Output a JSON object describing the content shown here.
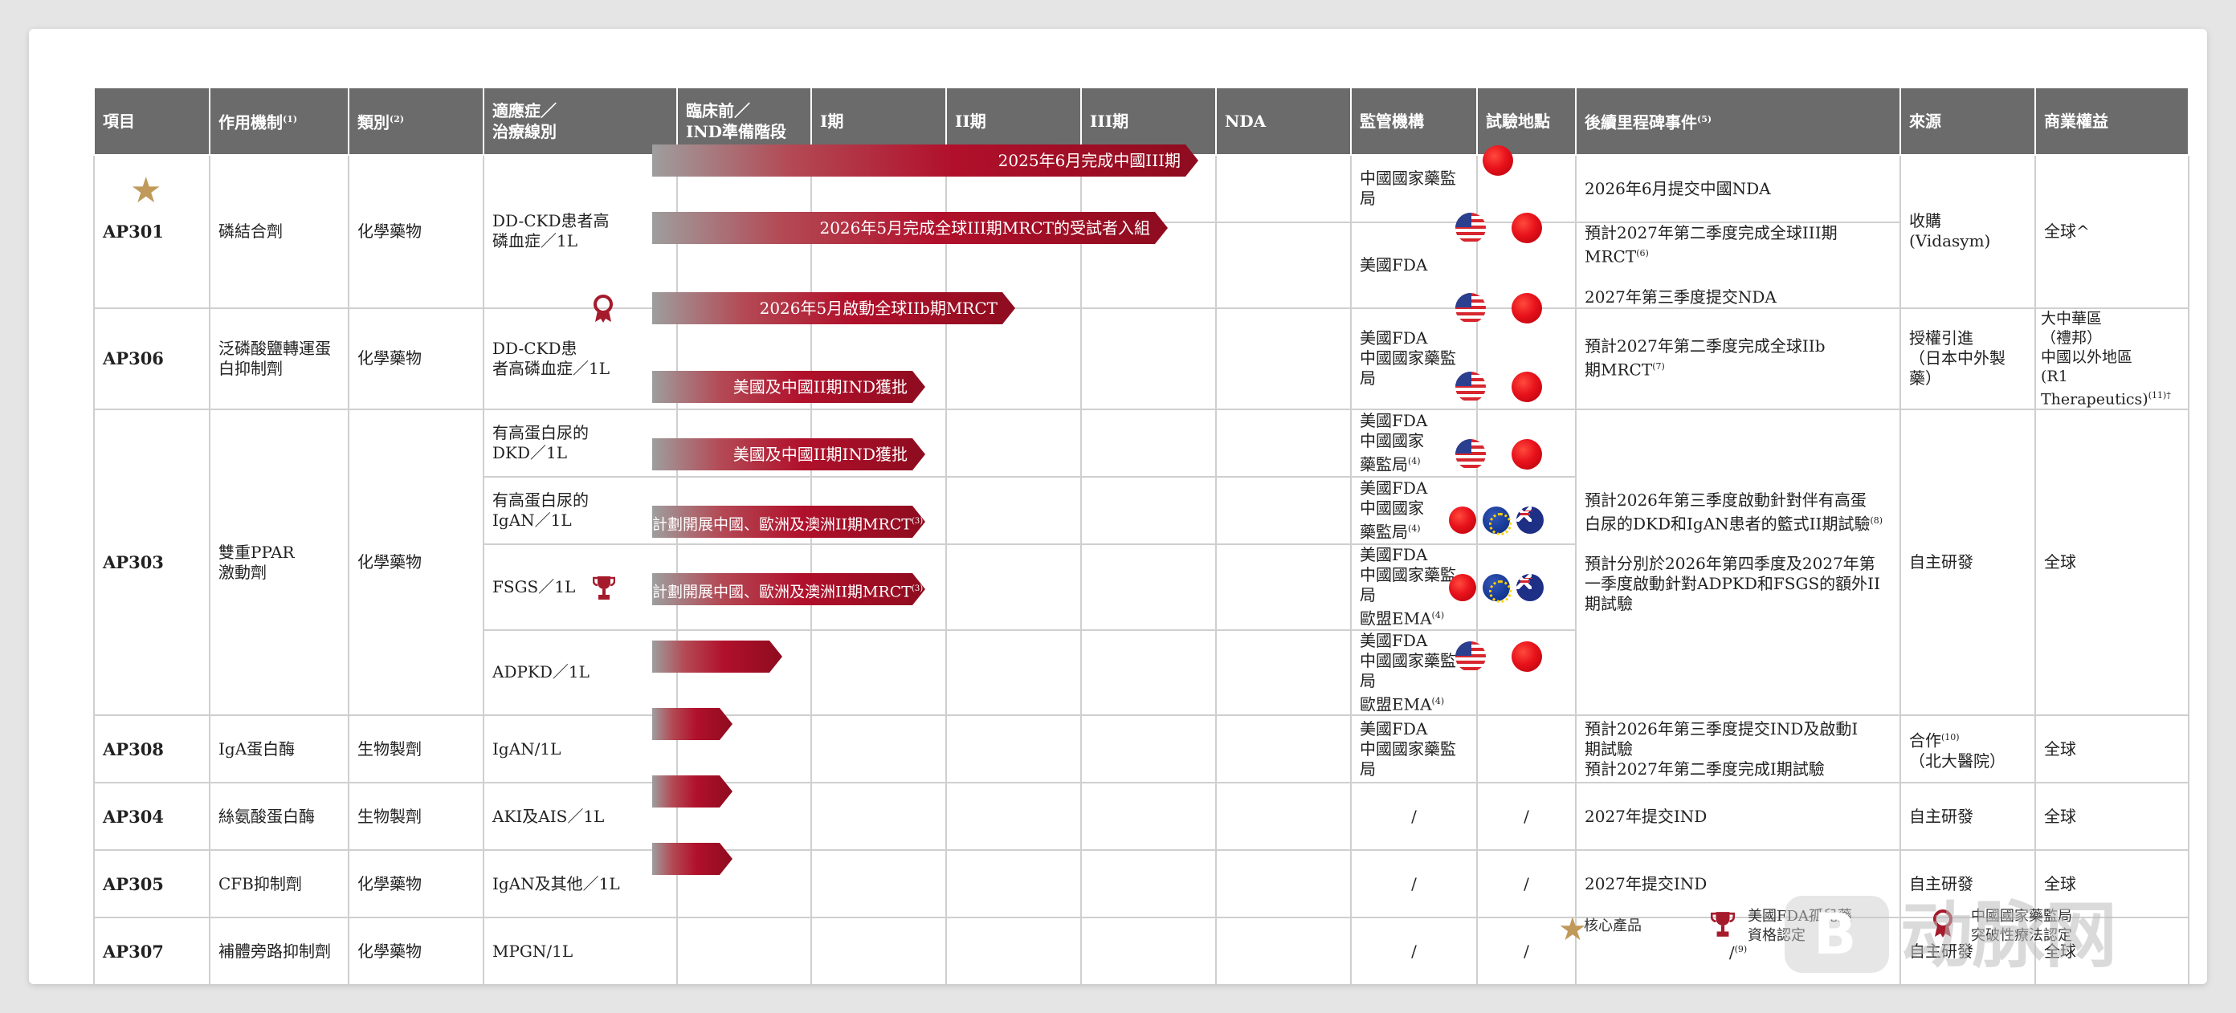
{
  "headers": {
    "project": "項目",
    "mechanism": "作用機制",
    "mechanism_note": "(1)",
    "category": "類別",
    "category_note": "(2)",
    "indication_l1": "適應症／",
    "indication_l2": "治療線別",
    "preclinical_l1": "臨床前／",
    "preclinical_l2": "IND準備階段",
    "phase1": "I期",
    "phase2": "II期",
    "phase3": "III期",
    "nda": "NDA",
    "regulator": "監管機構",
    "site": "試驗地點",
    "milestone": "後續里程碑事件",
    "milestone_note": "(5)",
    "source": "來源",
    "rights": "商業權益"
  },
  "rows": {
    "ap301": {
      "code": "AP301",
      "mechanism": "磷結合劑",
      "category": "化學藥物",
      "indication_l1": "DD-CKD患者高",
      "indication_l2": "磷血症／1L",
      "bar1": "2025年6月完成中國III期",
      "bar2": "2026年5月完成全球III期MRCT的受試者入組",
      "regulator1": "中國國家藥監局",
      "regulator2": "美國FDA",
      "milestone1": "2026年6月提交中國NDA",
      "milestone2a": "預計2027年第二季度完成全球III期MRCT",
      "milestone2a_note": "(6)",
      "milestone2b": "2027年第三季度提交NDA",
      "source_l1": "收購",
      "source_l2": "(Vidasym)",
      "rights": "全球^"
    },
    "ap306": {
      "code": "AP306",
      "mechanism_l1": "泛磷酸鹽轉運蛋",
      "mechanism_l2": "白抑制劑",
      "category": "化學藥物",
      "indication_l1": "DD-CKD患",
      "indication_l2": "者高磷血症／1L",
      "bar": "2026年5月啟動全球IIb期MRCT",
      "regulator_l1": "美國FDA",
      "regulator_l2": "中國國家藥監局",
      "milestone_l1": "預計2027年第二季度完成全球IIb",
      "milestone_l2": "期MRCT",
      "milestone_note": "(7)",
      "source_l1": "授權引進",
      "source_l2": "（日本中外製藥）",
      "rights_l1": "大中華區",
      "rights_l2": "（禮邦）",
      "rights_l3": "中國以外地區",
      "rights_l4": "(R1 Therapeutics)",
      "rights_note": "(11)†"
    },
    "ap303": {
      "code": "AP303",
      "mechanism_l1": "雙重PPAR",
      "mechanism_l2": "激動劑",
      "category": "化學藥物",
      "ind1_l1": "有高蛋白尿的",
      "ind1_l2": "DKD／1L",
      "ind2_l1": "有高蛋白尿的",
      "ind2_l2": "IgAN／1L",
      "ind3": "FSGS／1L",
      "ind4": "ADPKD／1L",
      "bar1": "美國及中國II期IND獲批",
      "bar2": "美國及中國II期IND獲批",
      "bar3": "計劃開展中國、歐洲及澳洲II期MRCT",
      "bar3_note": "(3)",
      "bar4": "計劃開展中國、歐洲及澳洲II期MRCT",
      "bar4_note": "(3)",
      "reg1_l1": "美國FDA",
      "reg1_l2": "中國國家",
      "reg1_l3": "藥監局",
      "reg1_note": "(4)",
      "reg2_l1": "美國FDA",
      "reg2_l2": "中國國家",
      "reg2_l3": "藥監局",
      "reg2_note": "(4)",
      "reg3_l1": "美國FDA",
      "reg3_l2": "中國國家藥監局",
      "reg3_l3": "歐盟EMA",
      "reg3_note": "(4)",
      "reg4_l1": "美國FDA",
      "reg4_l2": "中國國家藥監局",
      "reg4_l3": "歐盟EMA",
      "reg4_note": "(4)",
      "ms1_l1": "預計2026年第三季度啟動針對伴有高蛋",
      "ms1_l2": "白尿的DKD和IgAN患者的籃式II期試驗",
      "ms1_note": "(8)",
      "ms2_l1": "預計分別於2026年第四季度及2027年第",
      "ms2_l2": "一季度啟動針對ADPKD和FSGS的額外II",
      "ms2_l3": "期試驗",
      "source": "自主研發",
      "rights": "全球"
    },
    "ap308": {
      "code": "AP308",
      "mechanism": "IgA蛋白酶",
      "category": "生物製劑",
      "indication": "IgAN/1L",
      "regulator_l1": "美國FDA",
      "regulator_l2": "中國國家藥監局",
      "milestone_l1": "預計2026年第三季度提交IND及啟動I",
      "milestone_l2": "期試驗",
      "milestone_l3": "預計2027年第二季度完成I期試驗",
      "source_l1": "合作",
      "source_note": "(10)",
      "source_l2": "（北大醫院）",
      "rights": "全球"
    },
    "ap304": {
      "code": "AP304",
      "mechanism": "絲氨酸蛋白酶",
      "category": "生物製劑",
      "indication": "AKI及AIS／1L",
      "regulator": "/",
      "site": "/",
      "milestone": "2027年提交IND",
      "source": "自主研發",
      "rights": "全球"
    },
    "ap305": {
      "code": "AP305",
      "mechanism": "CFB抑制劑",
      "category": "化學藥物",
      "indication": "IgAN及其他／1L",
      "regulator": "/",
      "site": "/",
      "milestone": "2027年提交IND",
      "source": "自主研發",
      "rights": "全球"
    },
    "ap307": {
      "code": "AP307",
      "mechanism": "補體旁路抑制劑",
      "category": "化學藥物",
      "indication": "MPGN/1L",
      "regulator": "/",
      "site": "/",
      "milestone": "/",
      "milestone_note": "(9)",
      "source": "自主研發",
      "rights": "全球"
    }
  },
  "legend": {
    "core": "核心產品",
    "orphan_l1": "美國FDA孤兒藥",
    "orphan_l2": "資格認定",
    "btd_l1": "中國國家藥監局",
    "btd_l2": "突破性療法認定"
  },
  "watermark": {
    "logo": "B",
    "text": "动脉网"
  },
  "colors": {
    "bar_red": "#b1102b",
    "header_gray": "#6b6b6b",
    "star_gold": "#c09a5a"
  }
}
